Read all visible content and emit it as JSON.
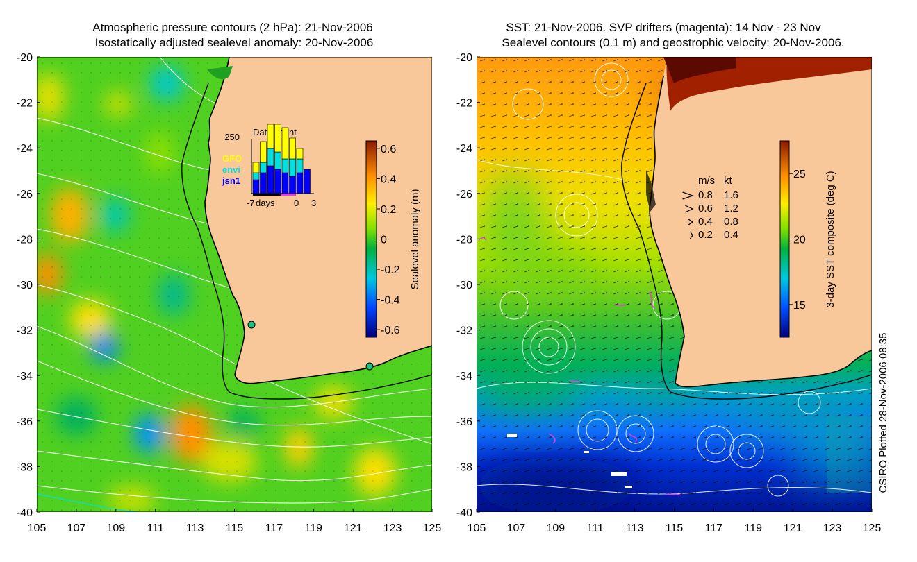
{
  "left_panel": {
    "title_line1": "Atmospheric pressure contours (2 hPa): 21-Nov-2006",
    "title_line2": "Isostatically adjusted sealevel anomaly: 20-Nov-2006",
    "colorbar": {
      "label": "Sealevel anomaly (m)",
      "ticks": [
        "0.6",
        "0.4",
        "0.2",
        "0",
        "-0.2",
        "-0.4",
        "-0.6"
      ],
      "range": [
        -0.65,
        0.65
      ]
    },
    "inset": {
      "title": "Data count",
      "y_tick": "250",
      "x_ticks": [
        "-7",
        "days",
        "0",
        "3"
      ],
      "legend": [
        {
          "label": "GFO",
          "color": "#ffff00"
        },
        {
          "label": "envi",
          "color": "#00e0e0"
        },
        {
          "label": "jsn1",
          "color": "#0000ff"
        }
      ]
    }
  },
  "right_panel": {
    "title_line1": "SST: 21-Nov-2006. SVP drifters (magenta): 14 Nov - 23 Nov",
    "title_line2": "Sealevel contours (0.1 m) and geostrophic velocity: 20-Nov-2006.",
    "colorbar": {
      "label": "3-day SST composite (deg C)",
      "ticks": [
        "25",
        "20",
        "15"
      ],
      "range": [
        12.5,
        27.5
      ]
    },
    "speed_legend": {
      "header_ms": "m/s",
      "header_kt": "kt",
      "rows": [
        {
          "ms": "0.8",
          "kt": "1.6"
        },
        {
          "ms": "0.6",
          "kt": "1.2"
        },
        {
          "ms": "0.4",
          "kt": "0.8"
        },
        {
          "ms": "0.2",
          "kt": "0.4"
        }
      ]
    }
  },
  "axes": {
    "lon_ticks": [
      "105",
      "107",
      "109",
      "111",
      "113",
      "115",
      "117",
      "119",
      "121",
      "123",
      "125"
    ],
    "lat_ticks": [
      "-20",
      "-22",
      "-24",
      "-26",
      "-28",
      "-30",
      "-32",
      "-34",
      "-36",
      "-38",
      "-40"
    ],
    "lon_range": [
      105,
      125
    ],
    "lat_range": [
      -20,
      -40
    ]
  },
  "credit": "CSIRO Plotted 28-Nov-2006 08:35",
  "colors": {
    "land": "#f9c89a",
    "coast": "#000000",
    "contour": "#ffffff",
    "drifter": "#e040e0"
  }
}
